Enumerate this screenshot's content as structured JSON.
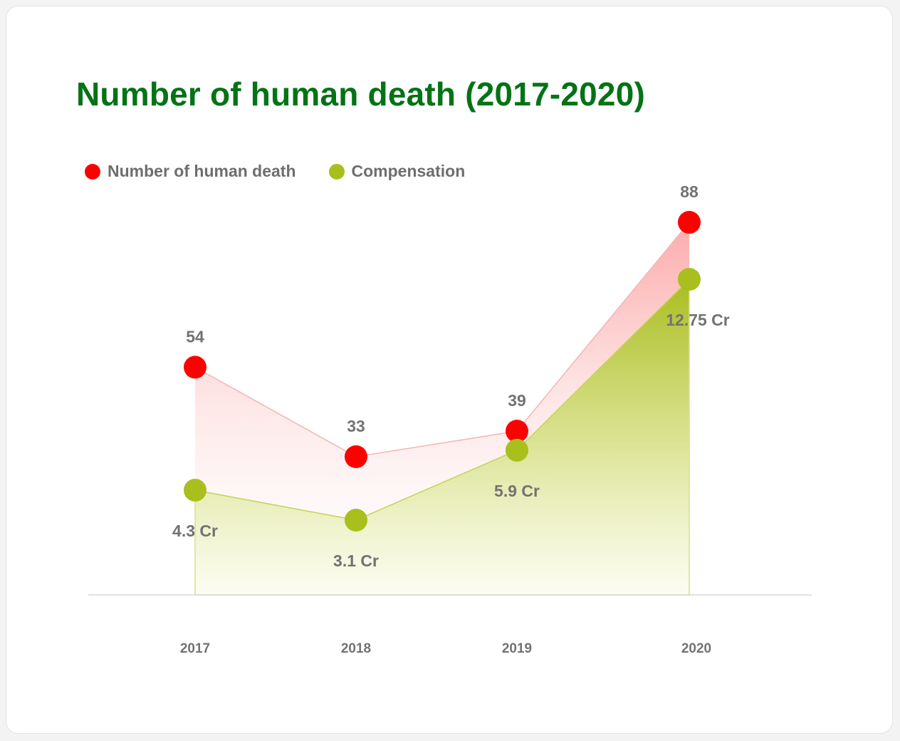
{
  "chart_data": {
    "type": "area",
    "title": "Number of human death (2017-2020)",
    "categories": [
      "2017",
      "2018",
      "2019",
      "2020"
    ],
    "series": [
      {
        "name": "Number of human death",
        "color": "#ff0000",
        "values": [
          54,
          33,
          39,
          88
        ],
        "labels": [
          "54",
          "33",
          "39",
          "88"
        ]
      },
      {
        "name": "Compensation",
        "color": "#a8bf1d",
        "values": [
          4.3,
          3.1,
          5.9,
          12.75
        ],
        "labels": [
          "4.3 Cr",
          "3.1 Cr",
          "5.9 Cr",
          "12.75 Cr"
        ]
      }
    ],
    "grid": false,
    "legend_position": "top-left"
  },
  "colors": {
    "title": "#047316",
    "death_fill": "#fdd2d2",
    "compensation_fill": "#b1c226",
    "label_text": "#727272",
    "baseline": "#d8d8d8"
  }
}
